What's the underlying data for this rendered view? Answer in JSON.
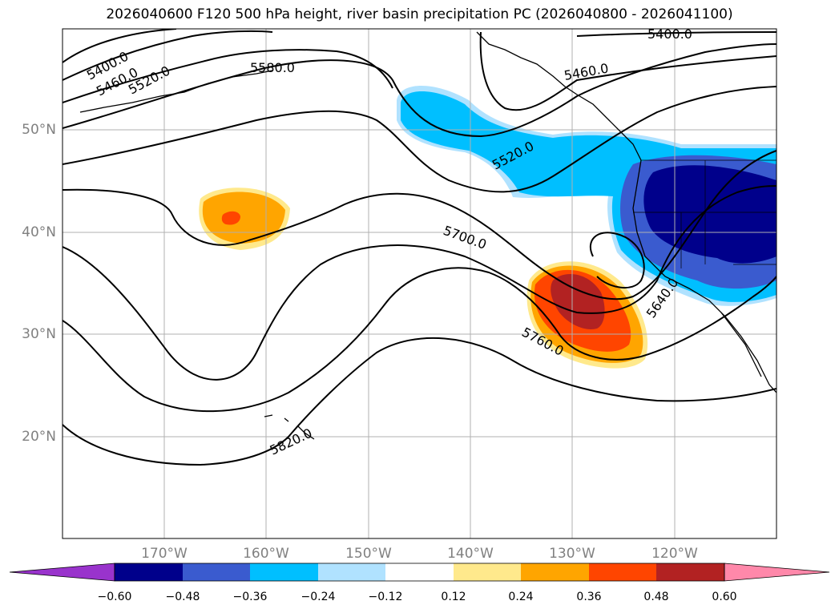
{
  "title": "2026040600 F120 500 hPa height, river basin precipitation PC (2026040800 - 2026041100)",
  "colors": {
    "contour": "#000000",
    "grid": "#b0b0b0",
    "coast": "#000000",
    "axis_label": "#808080"
  },
  "map": {
    "lat_labels": [
      "50°N",
      "40°N",
      "30°N",
      "20°N"
    ],
    "lon_labels": [
      "170°W",
      "160°W",
      "150°W",
      "140°W",
      "130°W",
      "120°W"
    ]
  },
  "contour_labels": [
    "5400.0",
    "5400.0",
    "5460.0",
    "5460.0",
    "5520.0",
    "5520.0",
    "5580.0",
    "5640.0",
    "5700.0",
    "5760.0",
    "5820.0"
  ],
  "colorbar": {
    "ticks": [
      "−0.60",
      "−0.48",
      "−0.36",
      "−0.24",
      "−0.12",
      "0.12",
      "0.24",
      "0.36",
      "0.48",
      "0.60"
    ],
    "bins": [
      {
        "color": "#9933cc"
      },
      {
        "color": "#00008b"
      },
      {
        "color": "#3a5bcf"
      },
      {
        "color": "#00bfff"
      },
      {
        "color": "#b0e2ff"
      },
      {
        "color": "#ffffff"
      },
      {
        "color": "#ffe98c"
      },
      {
        "color": "#ffa500"
      },
      {
        "color": "#ff4500"
      },
      {
        "color": "#b22222"
      },
      {
        "color": "#ff88aa"
      }
    ]
  }
}
